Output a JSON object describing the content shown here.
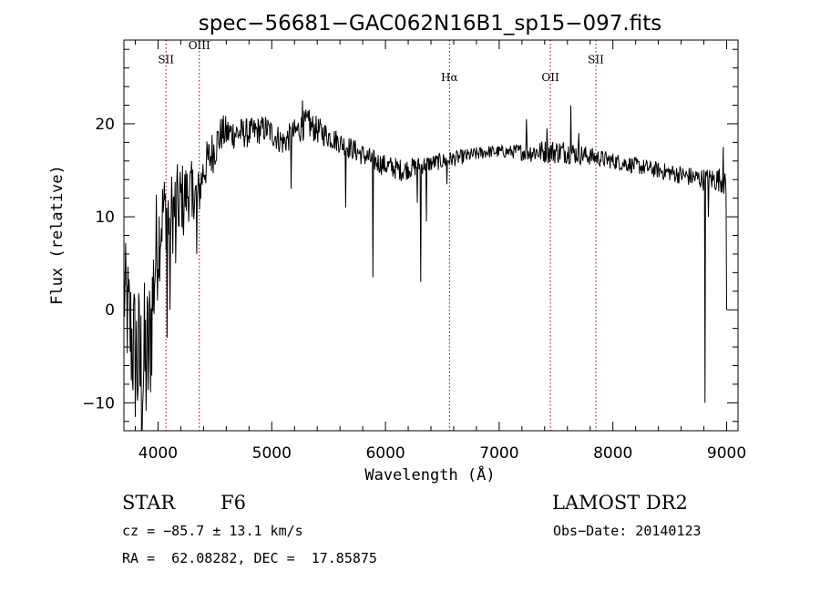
{
  "chart_data": {
    "type": "line",
    "title": "spec−56681−GAC062N16B1_sp15−097.fits",
    "xlabel": "Wavelength (Å)",
    "ylabel": "Flux (relative)",
    "xlim": [
      3700,
      9100
    ],
    "ylim": [
      -13,
      29
    ],
    "xticks": [
      {
        "value": 4000,
        "label": "4000"
      },
      {
        "value": 5000,
        "label": "5000"
      },
      {
        "value": 6000,
        "label": "6000"
      },
      {
        "value": 7000,
        "label": "7000"
      },
      {
        "value": 8000,
        "label": "8000"
      },
      {
        "value": 9000,
        "label": "9000"
      }
    ],
    "yticks": [
      {
        "value": -10,
        "label": "−10"
      },
      {
        "value": 0,
        "label": "0"
      },
      {
        "value": 10,
        "label": "10"
      },
      {
        "value": 20,
        "label": "20"
      }
    ],
    "emission_lines": [
      {
        "name": "SII",
        "x": 4070,
        "label_y": 26.5
      },
      {
        "name": "OIII",
        "x": 4363,
        "label_y": 28.0
      },
      {
        "name": "Hα",
        "x": 6563,
        "label_y": 24.6
      },
      {
        "name": "OII",
        "x": 7450,
        "label_y": 24.6
      },
      {
        "name": "SII",
        "x": 7850,
        "label_y": 26.5
      }
    ],
    "spectrum": {
      "name": "",
      "anchors": [
        [
          3700,
          2,
          6
        ],
        [
          3780,
          -4,
          8
        ],
        [
          3850,
          -7,
          10
        ],
        [
          3920,
          -5,
          9
        ],
        [
          3980,
          6,
          7
        ],
        [
          4050,
          11,
          4
        ],
        [
          4100,
          10,
          5
        ],
        [
          4200,
          12,
          4
        ],
        [
          4300,
          13,
          3
        ],
        [
          4350,
          12,
          3
        ],
        [
          4400,
          15,
          2.5
        ],
        [
          4480,
          17,
          2.5
        ],
        [
          4560,
          19,
          2.0
        ],
        [
          4650,
          19,
          1.8
        ],
        [
          4800,
          19,
          1.6
        ],
        [
          4950,
          19.5,
          1.5
        ],
        [
          5100,
          18,
          1.5
        ],
        [
          5300,
          20,
          1.6
        ],
        [
          5450,
          19,
          1.4
        ],
        [
          5600,
          18,
          1.2
        ],
        [
          5750,
          17,
          1.2
        ],
        [
          5900,
          16,
          1.2
        ],
        [
          6000,
          15.5,
          1.2
        ],
        [
          6150,
          15,
          1.2
        ],
        [
          6300,
          15.5,
          1.0
        ],
        [
          6500,
          16,
          0.9
        ],
        [
          6700,
          16.5,
          0.8
        ],
        [
          6900,
          17,
          0.7
        ],
        [
          7100,
          17,
          0.7
        ],
        [
          7300,
          17,
          1.2
        ],
        [
          7450,
          17,
          1.3
        ],
        [
          7600,
          17,
          1.3
        ],
        [
          7800,
          16.5,
          1.0
        ],
        [
          8000,
          16,
          0.9
        ],
        [
          8200,
          15.5,
          0.9
        ],
        [
          8400,
          15,
          0.9
        ],
        [
          8600,
          14.5,
          1.0
        ],
        [
          8800,
          14,
          1.2
        ],
        [
          8950,
          14,
          1.4
        ],
        [
          9000,
          13,
          1.5
        ]
      ],
      "features": [
        [
          4080,
          -3
        ],
        [
          4103,
          0
        ],
        [
          4155,
          5
        ],
        [
          4187,
          9
        ],
        [
          4226,
          8
        ],
        [
          4300,
          10
        ],
        [
          4340,
          6
        ],
        [
          5170,
          13
        ],
        [
          5270,
          22.5
        ],
        [
          5330,
          21.5
        ],
        [
          5650,
          11
        ],
        [
          5890,
          3.5
        ],
        [
          6280,
          11.5
        ],
        [
          6310,
          3
        ],
        [
          6360,
          9.5
        ],
        [
          6540,
          13.5
        ],
        [
          7240,
          20.5
        ],
        [
          7420,
          19.5
        ],
        [
          7630,
          22
        ],
        [
          7700,
          19
        ],
        [
          8810,
          -10
        ],
        [
          8840,
          10
        ],
        [
          8970,
          17.5
        ],
        [
          9000,
          0
        ]
      ]
    }
  },
  "info": {
    "object_type": "STAR",
    "subclass": "F6",
    "survey": "LAMOST DR2",
    "redshift": "cz = −85.7 ± 13.1 km/s",
    "obs_date": "Obs−Date: 20140123",
    "coords": "RA =  62.08282, DEC =  17.85875"
  }
}
